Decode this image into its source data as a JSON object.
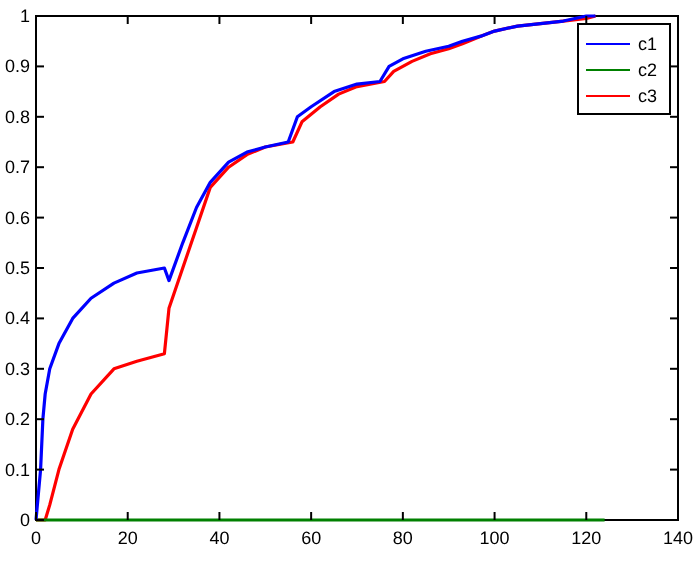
{
  "chart_data": {
    "type": "line",
    "xlim": [
      0,
      140
    ],
    "ylim": [
      0,
      1
    ],
    "xticks": [
      0,
      20,
      40,
      60,
      80,
      100,
      120,
      140
    ],
    "yticks": [
      0,
      {
        "value": 0.1,
        "label": "0.1"
      },
      {
        "value": 0.2,
        "label": "0.2"
      },
      {
        "value": 0.3,
        "label": "0.3"
      },
      {
        "value": 0.4,
        "label": "0.4"
      },
      {
        "value": 0.5,
        "label": "0.5"
      },
      {
        "value": 0.6,
        "label": "0.6"
      },
      {
        "value": 0.7,
        "label": "0.7"
      },
      {
        "value": 0.8,
        "label": "0.8"
      },
      {
        "value": 0.9,
        "label": "0.9"
      },
      1
    ],
    "grid": false,
    "legend": "top right",
    "line_style": "solid",
    "series": [
      {
        "name": "c1",
        "color": "#0000ff",
        "x": [
          0,
          1,
          1.5,
          2,
          3,
          5,
          8,
          12,
          17,
          22,
          28,
          29,
          32,
          35,
          38,
          42,
          46,
          50,
          55,
          57,
          60,
          65,
          70,
          75,
          77,
          80,
          85,
          90,
          93,
          97,
          100,
          105,
          110,
          115,
          120,
          122
        ],
        "values": [
          0,
          0.1,
          0.2,
          0.25,
          0.3,
          0.35,
          0.4,
          0.44,
          0.47,
          0.49,
          0.5,
          0.475,
          0.55,
          0.62,
          0.67,
          0.71,
          0.73,
          0.74,
          0.75,
          0.8,
          0.82,
          0.85,
          0.865,
          0.87,
          0.9,
          0.915,
          0.93,
          0.94,
          0.95,
          0.96,
          0.97,
          0.98,
          0.985,
          0.99,
          1,
          1
        ]
      },
      {
        "name": "c2",
        "color": "#008000",
        "x": [
          0,
          124
        ],
        "values": [
          0,
          0
        ]
      },
      {
        "name": "c3",
        "color": "#ff0000",
        "x": [
          0,
          2,
          3,
          5,
          8,
          12,
          17,
          22,
          28,
          29,
          32,
          35,
          38,
          42,
          46,
          50,
          56,
          58,
          62,
          66,
          70,
          76,
          78,
          82,
          86,
          90,
          93,
          97,
          100,
          105,
          110,
          115,
          120,
          122
        ],
        "values": [
          0,
          0,
          0.03,
          0.1,
          0.18,
          0.25,
          0.3,
          0.315,
          0.33,
          0.42,
          0.5,
          0.58,
          0.66,
          0.7,
          0.725,
          0.74,
          0.75,
          0.79,
          0.82,
          0.845,
          0.86,
          0.87,
          0.89,
          0.91,
          0.925,
          0.935,
          0.945,
          0.96,
          0.97,
          0.98,
          0.985,
          0.99,
          0.995,
          1
        ]
      }
    ]
  }
}
